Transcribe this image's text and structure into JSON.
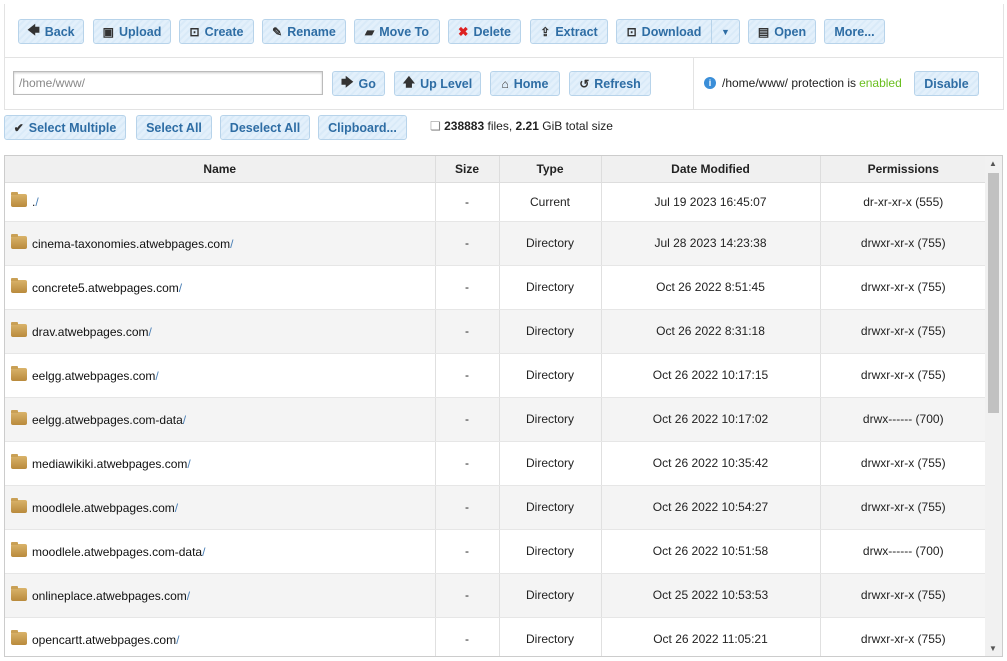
{
  "toolbar": {
    "back": "Back",
    "upload": "Upload",
    "create": "Create",
    "rename": "Rename",
    "move_to": "Move To",
    "delete": "Delete",
    "extract": "Extract",
    "download": "Download",
    "open": "Open",
    "more": "More..."
  },
  "nav": {
    "path_value": "/home/www/",
    "go": "Go",
    "up_level": "Up Level",
    "home": "Home",
    "refresh": "Refresh"
  },
  "protection": {
    "text": "/home/www/ protection is",
    "status": "enabled",
    "button": "Disable"
  },
  "selection": {
    "select_multiple": "Select Multiple",
    "select_all": "Select All",
    "deselect_all": "Deselect All",
    "clipboard": "Clipboard..."
  },
  "stats": {
    "files": "238883",
    "files_label": "files,",
    "size": "2.21",
    "size_label": "GiB total size"
  },
  "table": {
    "headers": [
      "Name",
      "Size",
      "Type",
      "Date Modified",
      "Permissions"
    ],
    "rows": [
      {
        "name": ".",
        "size": "-",
        "type": "Current",
        "date": "Jul 19 2023 16:45:07",
        "perm": "dr-xr-xr-x (555)"
      },
      {
        "name": "cinema-taxonomies.atwebpages.com",
        "size": "-",
        "type": "Directory",
        "date": "Jul 28 2023 14:23:38",
        "perm": "drwxr-xr-x (755)"
      },
      {
        "name": "concrete5.atwebpages.com",
        "size": "-",
        "type": "Directory",
        "date": "Oct 26 2022 8:51:45",
        "perm": "drwxr-xr-x (755)"
      },
      {
        "name": "drav.atwebpages.com",
        "size": "-",
        "type": "Directory",
        "date": "Oct 26 2022 8:31:18",
        "perm": "drwxr-xr-x (755)"
      },
      {
        "name": "eelgg.atwebpages.com",
        "size": "-",
        "type": "Directory",
        "date": "Oct 26 2022 10:17:15",
        "perm": "drwxr-xr-x (755)"
      },
      {
        "name": "eelgg.atwebpages.com-data",
        "size": "-",
        "type": "Directory",
        "date": "Oct 26 2022 10:17:02",
        "perm": "drwx------ (700)"
      },
      {
        "name": "mediawikiki.atwebpages.com",
        "size": "-",
        "type": "Directory",
        "date": "Oct 26 2022 10:35:42",
        "perm": "drwxr-xr-x (755)"
      },
      {
        "name": "moodlele.atwebpages.com",
        "size": "-",
        "type": "Directory",
        "date": "Oct 26 2022 10:54:27",
        "perm": "drwxr-xr-x (755)"
      },
      {
        "name": "moodlele.atwebpages.com-data",
        "size": "-",
        "type": "Directory",
        "date": "Oct 26 2022 10:51:58",
        "perm": "drwx------ (700)"
      },
      {
        "name": "onlineplace.atwebpages.com",
        "size": "-",
        "type": "Directory",
        "date": "Oct 25 2022 10:53:53",
        "perm": "drwxr-xr-x (755)"
      },
      {
        "name": "opencartt.atwebpages.com",
        "size": "-",
        "type": "Directory",
        "date": "Oct 26 2022 11:05:21",
        "perm": "drwxr-xr-x (755)"
      }
    ]
  },
  "colors": {
    "button_text": "#2e6da4",
    "enabled": "#6abf1f",
    "info": "#3a8ed8"
  }
}
